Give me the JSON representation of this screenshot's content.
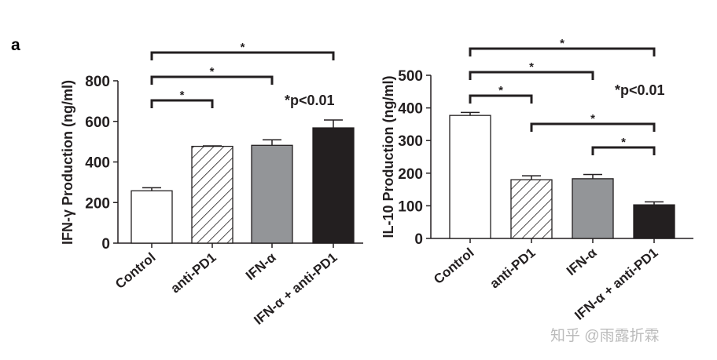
{
  "panel_label": "a",
  "watermark": "知乎 @雨露折霖",
  "chart_data": [
    {
      "type": "bar",
      "ylabel": "IFN-γ Production (ng/ml)",
      "ylim": [
        0,
        800
      ],
      "yticks": [
        0,
        200,
        400,
        600,
        800
      ],
      "categories": [
        "Control",
        "anti-PD1",
        "IFN-α",
        "IFN-α + anti-PD1"
      ],
      "values": [
        258,
        477,
        482,
        568
      ],
      "errors": [
        15,
        2,
        27,
        39
      ],
      "fills": [
        "#ffffff",
        "hatch",
        "#939598",
        "#231f20"
      ],
      "annotation": "*p<0.01",
      "significance": [
        {
          "from": 0,
          "to": 1,
          "label": "*"
        },
        {
          "from": 0,
          "to": 2,
          "label": "*"
        },
        {
          "from": 0,
          "to": 3,
          "label": "*"
        }
      ]
    },
    {
      "type": "bar",
      "ylabel": "IL-10 Production (ng/ml)",
      "ylim": [
        0,
        500
      ],
      "yticks": [
        0,
        100,
        200,
        300,
        400,
        500
      ],
      "categories": [
        "Control",
        "anti-PD1",
        "IFN-α",
        "IFN-α + anti-PD1"
      ],
      "values": [
        377,
        180,
        183,
        103
      ],
      "errors": [
        9,
        12,
        13,
        9
      ],
      "fills": [
        "#ffffff",
        "hatch",
        "#939598",
        "#231f20"
      ],
      "annotation": "*p<0.01",
      "significance": [
        {
          "from": 0,
          "to": 1,
          "label": "*"
        },
        {
          "from": 0,
          "to": 2,
          "label": "*"
        },
        {
          "from": 0,
          "to": 3,
          "label": "*"
        },
        {
          "from": 1,
          "to": 3,
          "label": "*"
        },
        {
          "from": 2,
          "to": 3,
          "label": "*"
        }
      ]
    }
  ]
}
